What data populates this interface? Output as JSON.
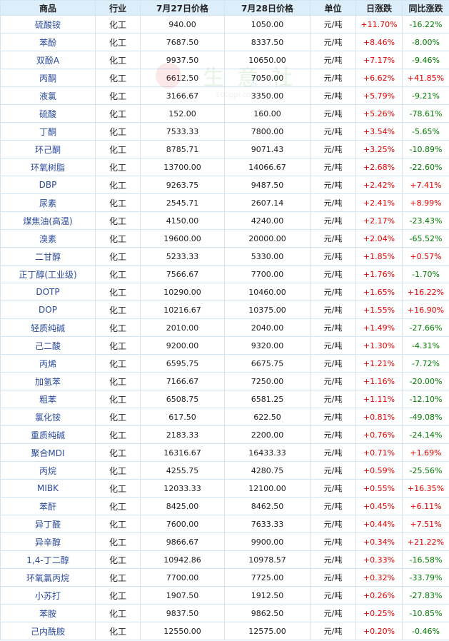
{
  "headers": [
    "商品",
    "行业",
    "7月27日价格",
    "7月28日价格",
    "单位",
    "日涨跌",
    "同比涨跌"
  ],
  "watermark": {
    "text": "生意社",
    "url": "100ppi.com"
  },
  "rows": [
    {
      "name": "硫酸铵",
      "industry": "化工",
      "p1": "940.00",
      "p2": "1050.00",
      "unit": "元/吨",
      "day": "+11.70%",
      "yoy": "-16.22%"
    },
    {
      "name": "苯酚",
      "industry": "化工",
      "p1": "7687.50",
      "p2": "8337.50",
      "unit": "元/吨",
      "day": "+8.46%",
      "yoy": "-8.00%"
    },
    {
      "name": "双酚A",
      "industry": "化工",
      "p1": "9937.50",
      "p2": "10650.00",
      "unit": "元/吨",
      "day": "+7.17%",
      "yoy": "-9.46%"
    },
    {
      "name": "丙酮",
      "industry": "化工",
      "p1": "6612.50",
      "p2": "7050.00",
      "unit": "元/吨",
      "day": "+6.62%",
      "yoy": "+41.85%"
    },
    {
      "name": "液氯",
      "industry": "化工",
      "p1": "3166.67",
      "p2": "3350.00",
      "unit": "元/吨",
      "day": "+5.79%",
      "yoy": "-9.21%"
    },
    {
      "name": "硫酸",
      "industry": "化工",
      "p1": "152.00",
      "p2": "160.00",
      "unit": "元/吨",
      "day": "+5.26%",
      "yoy": "-78.61%"
    },
    {
      "name": "丁酮",
      "industry": "化工",
      "p1": "7533.33",
      "p2": "7800.00",
      "unit": "元/吨",
      "day": "+3.54%",
      "yoy": "-5.65%"
    },
    {
      "name": "环己酮",
      "industry": "化工",
      "p1": "8785.71",
      "p2": "9071.43",
      "unit": "元/吨",
      "day": "+3.25%",
      "yoy": "-10.89%"
    },
    {
      "name": "环氧树脂",
      "industry": "化工",
      "p1": "13700.00",
      "p2": "14066.67",
      "unit": "元/吨",
      "day": "+2.68%",
      "yoy": "-22.60%"
    },
    {
      "name": "DBP",
      "industry": "化工",
      "p1": "9263.75",
      "p2": "9487.50",
      "unit": "元/吨",
      "day": "+2.42%",
      "yoy": "+7.41%"
    },
    {
      "name": "尿素",
      "industry": "化工",
      "p1": "2545.71",
      "p2": "2607.14",
      "unit": "元/吨",
      "day": "+2.41%",
      "yoy": "+8.99%"
    },
    {
      "name": "煤焦油(高温)",
      "industry": "化工",
      "p1": "4150.00",
      "p2": "4240.00",
      "unit": "元/吨",
      "day": "+2.17%",
      "yoy": "-23.43%"
    },
    {
      "name": "溴素",
      "industry": "化工",
      "p1": "19600.00",
      "p2": "20000.00",
      "unit": "元/吨",
      "day": "+2.04%",
      "yoy": "-65.52%"
    },
    {
      "name": "二甘醇",
      "industry": "化工",
      "p1": "5233.33",
      "p2": "5330.00",
      "unit": "元/吨",
      "day": "+1.85%",
      "yoy": "+0.57%"
    },
    {
      "name": "正丁醇(工业级)",
      "industry": "化工",
      "p1": "7566.67",
      "p2": "7700.00",
      "unit": "元/吨",
      "day": "+1.76%",
      "yoy": "-1.70%"
    },
    {
      "name": "DOTP",
      "industry": "化工",
      "p1": "10290.00",
      "p2": "10460.00",
      "unit": "元/吨",
      "day": "+1.65%",
      "yoy": "+16.22%"
    },
    {
      "name": "DOP",
      "industry": "化工",
      "p1": "10216.67",
      "p2": "10375.00",
      "unit": "元/吨",
      "day": "+1.55%",
      "yoy": "+16.90%"
    },
    {
      "name": "轻质纯碱",
      "industry": "化工",
      "p1": "2010.00",
      "p2": "2040.00",
      "unit": "元/吨",
      "day": "+1.49%",
      "yoy": "-27.66%"
    },
    {
      "name": "己二酸",
      "industry": "化工",
      "p1": "9200.00",
      "p2": "9320.00",
      "unit": "元/吨",
      "day": "+1.30%",
      "yoy": "-4.31%"
    },
    {
      "name": "丙烯",
      "industry": "化工",
      "p1": "6595.75",
      "p2": "6675.75",
      "unit": "元/吨",
      "day": "+1.21%",
      "yoy": "-7.72%"
    },
    {
      "name": "加氢苯",
      "industry": "化工",
      "p1": "7166.67",
      "p2": "7250.00",
      "unit": "元/吨",
      "day": "+1.16%",
      "yoy": "-20.00%"
    },
    {
      "name": "粗苯",
      "industry": "化工",
      "p1": "6508.75",
      "p2": "6581.25",
      "unit": "元/吨",
      "day": "+1.11%",
      "yoy": "-12.10%"
    },
    {
      "name": "氯化铵",
      "industry": "化工",
      "p1": "617.50",
      "p2": "622.50",
      "unit": "元/吨",
      "day": "+0.81%",
      "yoy": "-49.08%"
    },
    {
      "name": "重质纯碱",
      "industry": "化工",
      "p1": "2183.33",
      "p2": "2200.00",
      "unit": "元/吨",
      "day": "+0.76%",
      "yoy": "-24.14%"
    },
    {
      "name": "聚合MDI",
      "industry": "化工",
      "p1": "16316.67",
      "p2": "16433.33",
      "unit": "元/吨",
      "day": "+0.71%",
      "yoy": "+1.69%"
    },
    {
      "name": "丙烷",
      "industry": "化工",
      "p1": "4255.75",
      "p2": "4280.75",
      "unit": "元/吨",
      "day": "+0.59%",
      "yoy": "-25.56%"
    },
    {
      "name": "MIBK",
      "industry": "化工",
      "p1": "12033.33",
      "p2": "12100.00",
      "unit": "元/吨",
      "day": "+0.55%",
      "yoy": "+16.35%"
    },
    {
      "name": "苯酐",
      "industry": "化工",
      "p1": "8425.00",
      "p2": "8462.50",
      "unit": "元/吨",
      "day": "+0.45%",
      "yoy": "+6.11%"
    },
    {
      "name": "异丁醛",
      "industry": "化工",
      "p1": "7600.00",
      "p2": "7633.33",
      "unit": "元/吨",
      "day": "+0.44%",
      "yoy": "+7.51%"
    },
    {
      "name": "异辛醇",
      "industry": "化工",
      "p1": "9866.67",
      "p2": "9900.00",
      "unit": "元/吨",
      "day": "+0.34%",
      "yoy": "+21.22%"
    },
    {
      "name": "1,4-丁二醇",
      "industry": "化工",
      "p1": "10942.86",
      "p2": "10978.57",
      "unit": "元/吨",
      "day": "+0.33%",
      "yoy": "-16.58%"
    },
    {
      "name": "环氧氯丙烷",
      "industry": "化工",
      "p1": "7700.00",
      "p2": "7725.00",
      "unit": "元/吨",
      "day": "+0.32%",
      "yoy": "-33.79%"
    },
    {
      "name": "小苏打",
      "industry": "化工",
      "p1": "1907.50",
      "p2": "1912.50",
      "unit": "元/吨",
      "day": "+0.26%",
      "yoy": "-27.83%"
    },
    {
      "name": "苯胺",
      "industry": "化工",
      "p1": "9837.50",
      "p2": "9862.50",
      "unit": "元/吨",
      "day": "+0.25%",
      "yoy": "-10.85%"
    },
    {
      "name": "己内酰胺",
      "industry": "化工",
      "p1": "12550.00",
      "p2": "12575.00",
      "unit": "元/吨",
      "day": "+0.20%",
      "yoy": "-0.46%"
    }
  ]
}
